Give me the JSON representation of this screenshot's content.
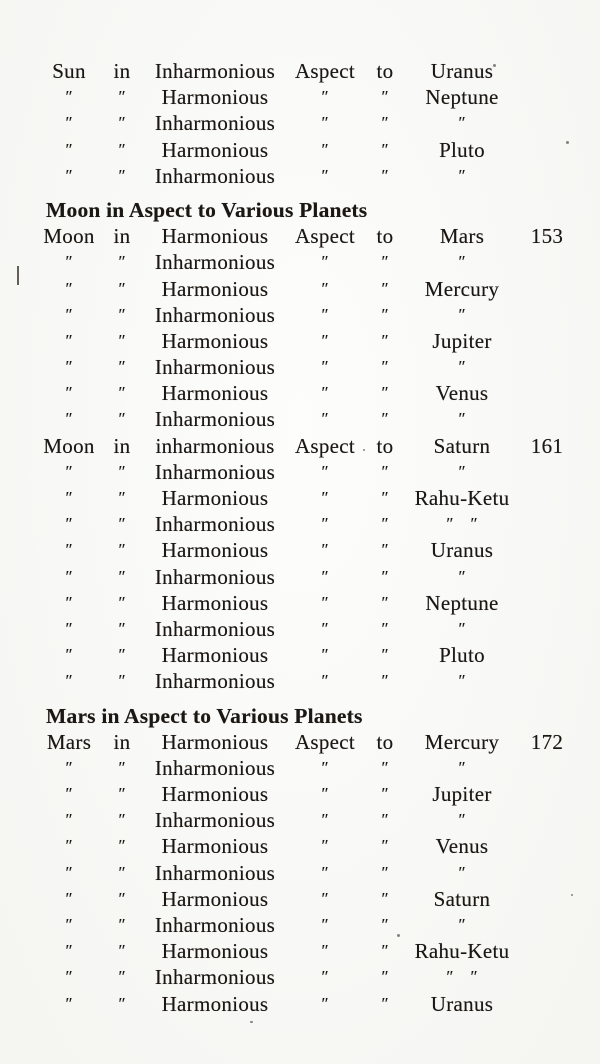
{
  "page": {
    "background_color": "#fafaf7",
    "text_color": "#1b1713",
    "type": "scanned-book-index-page"
  },
  "columns": [
    "planet",
    "in",
    "quality",
    "aspect",
    "to",
    "target",
    "page"
  ],
  "ditto_mark": "″",
  "sections": [
    {
      "heading": null,
      "rows": [
        [
          "Sun",
          "in",
          "Inharmonious",
          "Aspect",
          "to",
          "Uranus",
          ""
        ],
        [
          "″",
          "″",
          "Harmonious",
          "″",
          "″",
          "Neptune",
          ""
        ],
        [
          "″",
          "″",
          "Inharmonious",
          "″",
          "″",
          "″",
          ""
        ],
        [
          "″",
          "″",
          "Harmonious",
          "″",
          "″",
          "Pluto",
          ""
        ],
        [
          "″",
          "″",
          "Inharmonious",
          "″",
          "″",
          "″",
          ""
        ]
      ]
    },
    {
      "heading": "Moon in Aspect to Various Planets",
      "rows": [
        [
          "Moon",
          "in",
          "Harmonious",
          "Aspect",
          "to",
          "Mars",
          "153"
        ],
        [
          "″",
          "″",
          "Inharmonious",
          "″",
          "″",
          "″",
          ""
        ],
        [
          "″",
          "″",
          "Harmonious",
          "″",
          "″",
          "Mercury",
          ""
        ],
        [
          "″",
          "″",
          "Inharmonious",
          "″",
          "″",
          "″",
          ""
        ],
        [
          "″",
          "″",
          "Harmonious",
          "″",
          "″",
          "Jupiter",
          ""
        ],
        [
          "″",
          "″",
          "Inharmonious",
          "″",
          "″",
          "″",
          ""
        ],
        [
          "″",
          "″",
          "Harmonious",
          "″",
          "″",
          "Venus",
          ""
        ],
        [
          "″",
          "″",
          "Inharmonious",
          "″",
          "″",
          "″",
          ""
        ],
        [
          "Moon",
          "in",
          "inharmonious",
          "Aspect",
          "to",
          "Saturn",
          "161"
        ],
        [
          "″",
          "″",
          "Inharmonious",
          "″",
          "″",
          "″",
          ""
        ],
        [
          "″",
          "″",
          "Harmonious",
          "″",
          "″",
          "Rahu-Ketu",
          ""
        ],
        [
          "″",
          "″",
          "Inharmonious",
          "″",
          "″",
          "″    ″",
          ""
        ],
        [
          "″",
          "″",
          "Harmonious",
          "″",
          "″",
          "Uranus",
          ""
        ],
        [
          "″",
          "″",
          "Inharmonious",
          "″",
          "″",
          "″",
          ""
        ],
        [
          "″",
          "″",
          "Harmonious",
          "″",
          "″",
          "Neptune",
          ""
        ],
        [
          "″",
          "″",
          "Inharmonious",
          "″",
          "″",
          "″",
          ""
        ],
        [
          "″",
          "″",
          "Harmonious",
          "″",
          "″",
          "Pluto",
          ""
        ],
        [
          "″",
          "″",
          "Inharmonious",
          "″",
          "″",
          "″",
          ""
        ]
      ]
    },
    {
      "heading": "Mars in Aspect to Various Planets",
      "rows": [
        [
          "Mars",
          "in",
          "Harmonious",
          "Aspect",
          "to",
          "Mercury",
          "172"
        ],
        [
          "″",
          "″",
          "Inharmonious",
          "″",
          "″",
          "″",
          ""
        ],
        [
          "″",
          "″",
          "Harmonious",
          "″",
          "″",
          "Jupiter",
          ""
        ],
        [
          "″",
          "″",
          "Inharmonious",
          "″",
          "″",
          "″",
          ""
        ],
        [
          "″",
          "″",
          "Harmonious",
          "″",
          "″",
          "Venus",
          ""
        ],
        [
          "″",
          "″",
          "Inharmonious",
          "″",
          "″",
          "″",
          ""
        ],
        [
          "″",
          "″",
          "Harmonious",
          "″",
          "″",
          "Saturn",
          ""
        ],
        [
          "″",
          "″",
          "Inharmonious",
          "″",
          "″",
          "″",
          ""
        ],
        [
          "″",
          "″",
          "Harmonious",
          "″",
          "″",
          "Rahu-Ketu",
          ""
        ],
        [
          "″",
          "″",
          "Inharmonious",
          "″",
          "″",
          "″    ″",
          ""
        ],
        [
          "″",
          "″",
          "Harmonious",
          "″",
          "″",
          "Uranus",
          ""
        ]
      ]
    }
  ]
}
